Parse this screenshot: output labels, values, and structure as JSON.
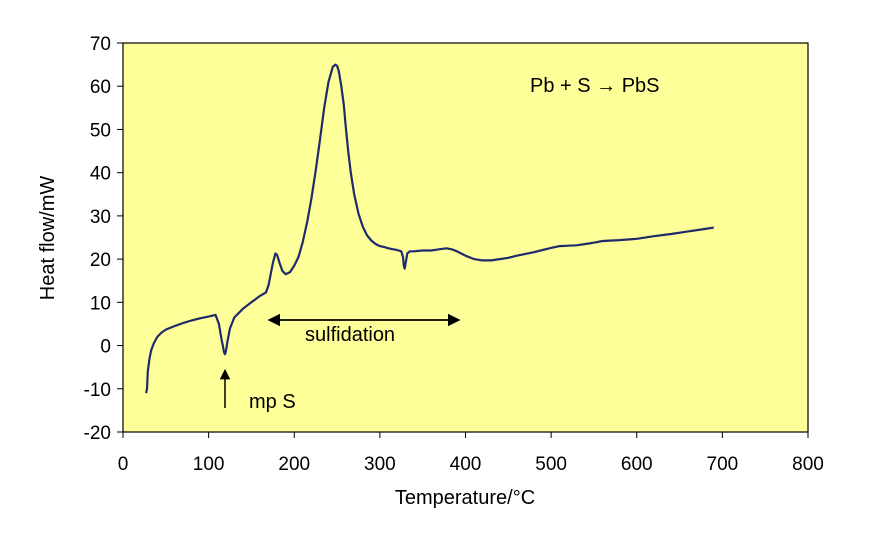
{
  "chart_data": {
    "type": "line",
    "title": "",
    "xlabel": "Temperature/°C",
    "ylabel": "Heat flow/mW",
    "xlim": [
      0,
      800
    ],
    "ylim": [
      -20,
      70
    ],
    "x_ticks": [
      0,
      100,
      200,
      300,
      400,
      500,
      600,
      700,
      800
    ],
    "y_ticks": [
      -20,
      -10,
      0,
      10,
      20,
      30,
      40,
      50,
      60,
      70
    ],
    "grid": false,
    "legend": "none",
    "plot_background": "#ffff99",
    "line_color": "#1f2a6b",
    "series": [
      {
        "x": [
          27,
          28,
          29,
          31,
          33,
          36,
          40,
          45,
          50,
          60,
          70,
          80,
          90,
          100,
          108,
          112,
          115,
          117,
          118,
          119,
          120,
          122,
          125,
          130,
          140,
          150,
          160,
          167,
          170,
          173,
          175,
          178,
          180,
          183,
          186,
          190,
          195,
          200,
          205,
          210,
          215,
          220,
          225,
          230,
          235,
          240,
          245,
          248,
          250,
          252,
          255,
          258,
          260,
          263,
          266,
          270,
          275,
          280,
          285,
          290,
          295,
          300,
          305,
          310,
          315,
          320,
          325,
          327,
          328,
          329,
          330,
          332,
          335,
          340,
          350,
          360,
          370,
          378,
          385,
          390,
          395,
          400,
          410,
          420,
          430,
          440,
          450,
          460,
          470,
          480,
          490,
          500,
          510,
          520,
          530,
          540,
          550,
          560,
          580,
          600,
          620,
          640,
          660,
          680,
          690
        ],
        "y": [
          -11,
          -10,
          -6,
          -3,
          -1,
          0.5,
          2,
          3,
          3.7,
          4.5,
          5.2,
          5.8,
          6.3,
          6.7,
          7.1,
          5,
          1.5,
          -0.5,
          -1.5,
          -2,
          -1.5,
          1,
          4,
          6.5,
          8.5,
          10,
          11.5,
          12.3,
          14,
          17,
          19,
          21.3,
          21,
          19,
          17.3,
          16.5,
          17,
          18.5,
          20.5,
          24,
          28.5,
          34,
          40.5,
          47.5,
          55,
          61,
          64.5,
          65,
          64.7,
          63.5,
          60,
          55.5,
          51,
          45,
          40,
          35,
          30.5,
          27.5,
          25.5,
          24.3,
          23.5,
          23,
          22.8,
          22.5,
          22.3,
          22.1,
          21.8,
          20.5,
          18.5,
          17.8,
          19,
          21.3,
          21.8,
          21.8,
          22,
          22,
          22.3,
          22.5,
          22.2,
          21.8,
          21.3,
          20.8,
          20,
          19.7,
          19.7,
          20,
          20.3,
          20.8,
          21.2,
          21.6,
          22.1,
          22.6,
          23,
          23.1,
          23.2,
          23.5,
          23.8,
          24.2,
          24.4,
          24.7,
          25.3,
          25.8,
          26.4,
          27,
          27.3
        ]
      }
    ],
    "annotations": {
      "reaction": "Pb + S → PbS",
      "sulfidation": "sulfidation",
      "mp": "mp S"
    }
  }
}
